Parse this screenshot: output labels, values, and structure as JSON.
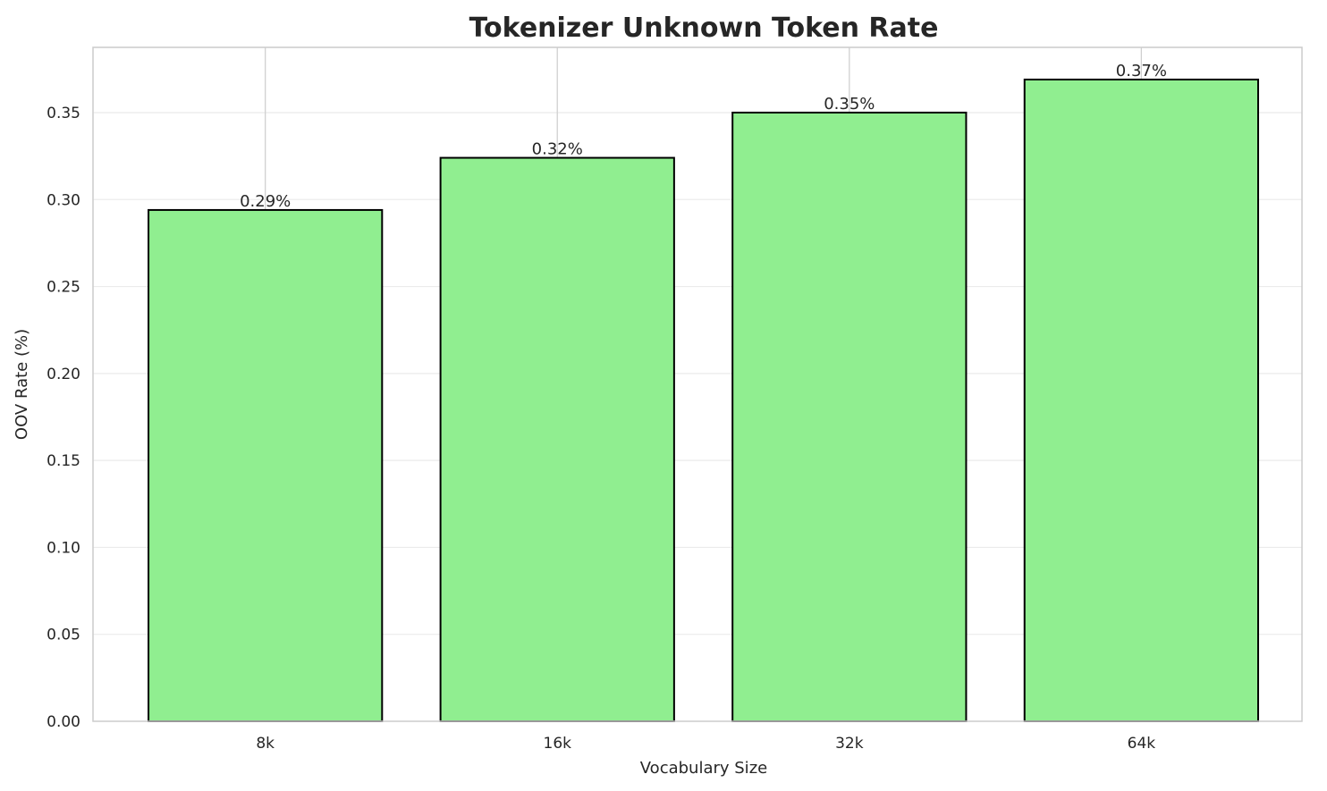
{
  "chart_data": {
    "type": "bar",
    "title": "Tokenizer Unknown Token Rate",
    "xlabel": "Vocabulary Size",
    "ylabel": "OOV Rate (%)",
    "categories": [
      "8k",
      "16k",
      "32k",
      "64k"
    ],
    "values": [
      0.294,
      0.324,
      0.35,
      0.369
    ],
    "data_labels": [
      "0.29%",
      "0.32%",
      "0.35%",
      "0.37%"
    ],
    "ylim": [
      0,
      0.3875
    ],
    "yticks": [
      0.0,
      0.05,
      0.1,
      0.15,
      0.2,
      0.25,
      0.3,
      0.35
    ],
    "ytick_labels": [
      "0.00",
      "0.05",
      "0.10",
      "0.15",
      "0.20",
      "0.25",
      "0.30",
      "0.35"
    ],
    "grid": true,
    "colors": {
      "bar": "#90ee90",
      "edge": "#000000",
      "grid": "#ebebeb",
      "spine": "#cccccc"
    }
  }
}
